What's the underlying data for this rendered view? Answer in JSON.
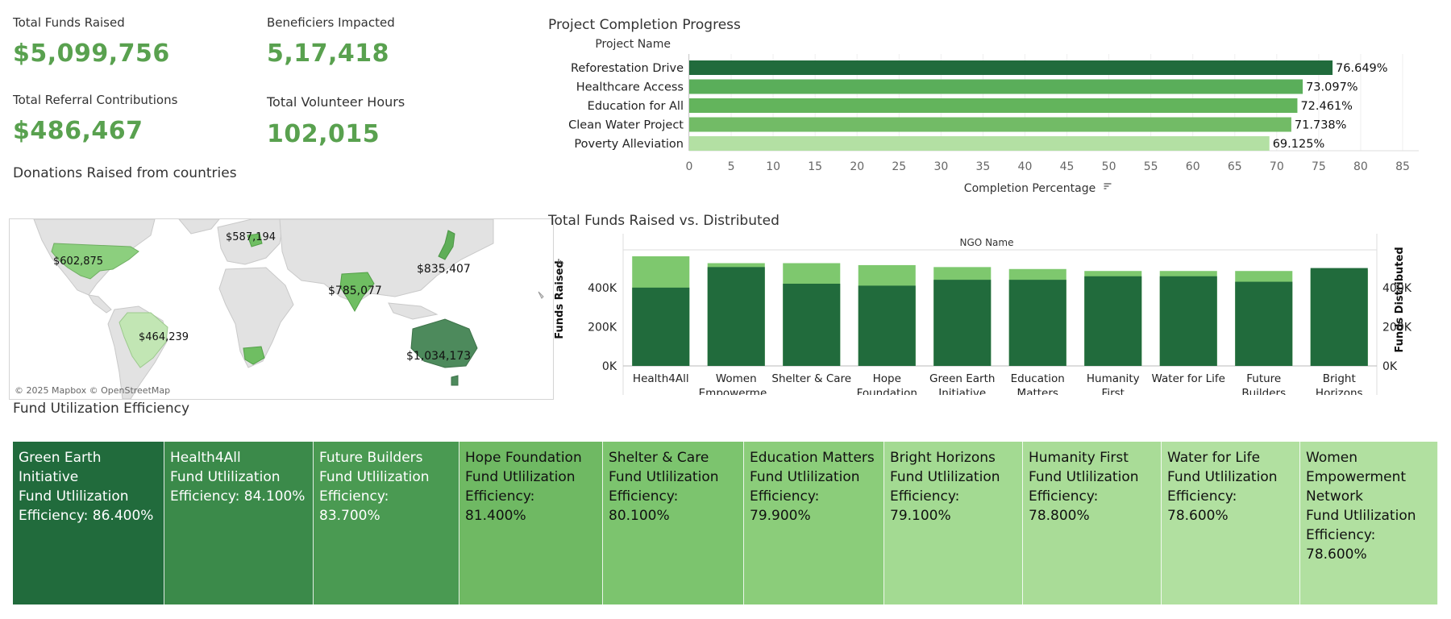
{
  "kpis": {
    "funds_raised": {
      "label": "Total Funds Raised",
      "value": "$5,099,756"
    },
    "beneficiaries": {
      "label": "Beneficiers Impacted",
      "value": "5,17,418"
    },
    "referral": {
      "label": "Total Referral Contributions",
      "value": "$486,467"
    },
    "volunteer": {
      "label": "Total Volunteer Hours",
      "value": "102,015"
    }
  },
  "map": {
    "title": "Donations Raised from countries",
    "attribution": "© 2025 Mapbox © OpenStreetMap",
    "labels": {
      "usa": "$602,875",
      "europe": "$587,194",
      "japan": "$835,407",
      "india": "$785,077",
      "brazil": "$464,239",
      "australia": "$1,034,173"
    }
  },
  "colors": {
    "dark_green": "#216b3c",
    "mid_green": "#5aae5a",
    "light_green": "#7ec86e",
    "pale_green": "#b3e0a3",
    "kpi_green": "#59a14f"
  },
  "chart_data": [
    {
      "type": "bar",
      "orientation": "horizontal",
      "title": "Project Completion Progress",
      "row_header": "Project Name",
      "xlabel": "Completion Percentage",
      "xlim": [
        0,
        85
      ],
      "ticks": [
        "0",
        "5",
        "10",
        "15",
        "20",
        "25",
        "30",
        "35",
        "40",
        "45",
        "50",
        "55",
        "60",
        "65",
        "70",
        "75",
        "80",
        "85"
      ],
      "categories": [
        "Reforestation Drive",
        "Healthcare Access",
        "Education for All",
        "Clean Water Project",
        "Poverty Alleviation"
      ],
      "values": [
        76.649,
        73.097,
        72.461,
        71.738,
        69.125
      ],
      "value_labels": [
        "76.649%",
        "73.097%",
        "72.461%",
        "71.738%",
        "69.125%"
      ]
    },
    {
      "type": "bar",
      "title": "Total Funds Raised vs. Distributed",
      "header": "NGO Name",
      "ylabel_left": "Funds Raised",
      "ylabel_right": "Funds Distributed",
      "ylim": [
        0,
        560000
      ],
      "y_ticks": [
        "0K",
        "200K",
        "400K"
      ],
      "categories": [
        [
          "Health4All"
        ],
        [
          "Women",
          "Empowerme.."
        ],
        [
          "Shelter & Care"
        ],
        [
          "Hope",
          "Foundation"
        ],
        [
          "Green Earth",
          "Initiative"
        ],
        [
          "Education",
          "Matters"
        ],
        [
          "Humanity",
          "First"
        ],
        [
          "Water for Life"
        ],
        [
          "Future",
          "Builders"
        ],
        [
          "Bright",
          "Horizons"
        ]
      ],
      "series": [
        {
          "name": "Funds Raised",
          "values": [
            560000,
            525000,
            525000,
            515000,
            505000,
            495000,
            485000,
            485000,
            485000,
            490000
          ]
        },
        {
          "name": "Funds Distributed",
          "values": [
            400000,
            505000,
            420000,
            410000,
            440000,
            440000,
            458000,
            458000,
            430000,
            500000
          ]
        }
      ]
    },
    {
      "type": "treemap",
      "title": "Fund Utilization Efficiency",
      "metric_label": "Fund Utlilization Efficiency:",
      "items": [
        {
          "name": "Green Earth Initiative",
          "value": 86.4,
          "label": "86.400%",
          "lines": [
            "Green Earth",
            "Initiative",
            "Fund Utlilization",
            "Efficiency: 86.400%"
          ]
        },
        {
          "name": "Health4All",
          "value": 84.1,
          "label": "84.100%",
          "lines": [
            "Health4All",
            "Fund Utlilization",
            "Efficiency: 84.100%"
          ]
        },
        {
          "name": "Future Builders",
          "value": 83.7,
          "label": "83.700%",
          "lines": [
            "Future Builders",
            "Fund Utlilization",
            "Efficiency:",
            "83.700%"
          ]
        },
        {
          "name": "Hope Foundation",
          "value": 81.4,
          "label": "81.400%",
          "lines": [
            "Hope Foundation",
            "Fund Utlilization",
            "Efficiency:",
            "81.400%"
          ]
        },
        {
          "name": "Shelter & Care",
          "value": 80.1,
          "label": "80.100%",
          "lines": [
            "Shelter & Care",
            "Fund Utlilization",
            "Efficiency:",
            "80.100%"
          ]
        },
        {
          "name": "Education Matters",
          "value": 79.9,
          "label": "79.900%",
          "lines": [
            "Education Matters",
            "Fund Utlilization",
            "Efficiency:",
            "79.900%"
          ]
        },
        {
          "name": "Bright Horizons",
          "value": 79.1,
          "label": "79.100%",
          "lines": [
            "Bright Horizons",
            "Fund Utlilization",
            "Efficiency:",
            "79.100%"
          ]
        },
        {
          "name": "Humanity First",
          "value": 78.8,
          "label": "78.800%",
          "lines": [
            "Humanity First",
            "Fund Utlilization",
            "Efficiency:",
            "78.800%"
          ]
        },
        {
          "name": "Water for Life",
          "value": 78.6,
          "label": "78.600%",
          "lines": [
            "Water for Life",
            "Fund Utlilization",
            "Efficiency:",
            "78.600%"
          ]
        },
        {
          "name": "Women Empowerment Network",
          "value": 78.6,
          "label": "78.600%",
          "lines": [
            "Women",
            "Empowerment",
            "Network",
            "Fund Utlilization",
            "Efficiency:",
            "78.600%"
          ]
        }
      ]
    }
  ]
}
